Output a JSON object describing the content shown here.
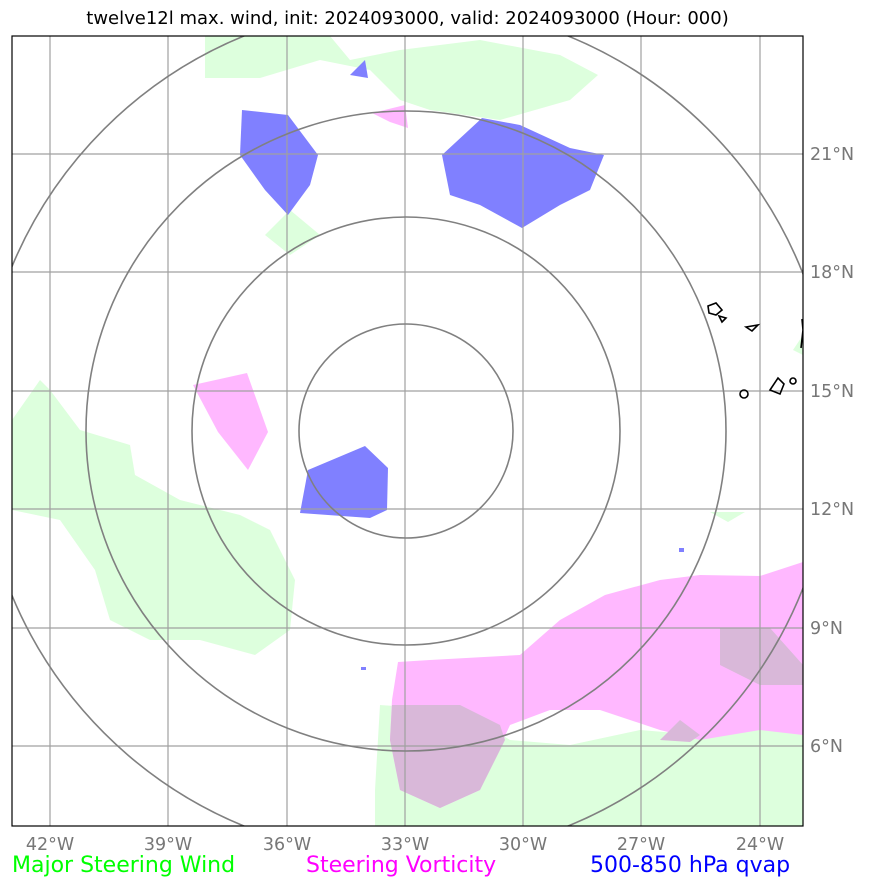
{
  "title": "twelve12l max. wind, init: 2024093000, valid: 2024093000 (Hour: 000)",
  "lon_ticks": [
    "42°W",
    "39°W",
    "36°W",
    "33°W",
    "30°W",
    "27°W",
    "24°W"
  ],
  "lat_ticks": [
    "21°N",
    "18°N",
    "15°N",
    "12°N",
    "9°N",
    "6°N"
  ],
  "legend": {
    "steering_wind": "Major Steering Wind",
    "steering_vorticity": "Steering Vorticity",
    "qvap": "500-850 hPa qvap"
  },
  "colors": {
    "steering_wind": "#00ff00",
    "steering_vorticity": "#ff00ff",
    "qvap": "#0000ff",
    "wind_fill": "#ddffdd",
    "vorticity_fill": "#ffb8ff",
    "qvap_fill": "#8080ff",
    "range_rings": "#808080",
    "gridlines": "#a0a0a0"
  }
}
